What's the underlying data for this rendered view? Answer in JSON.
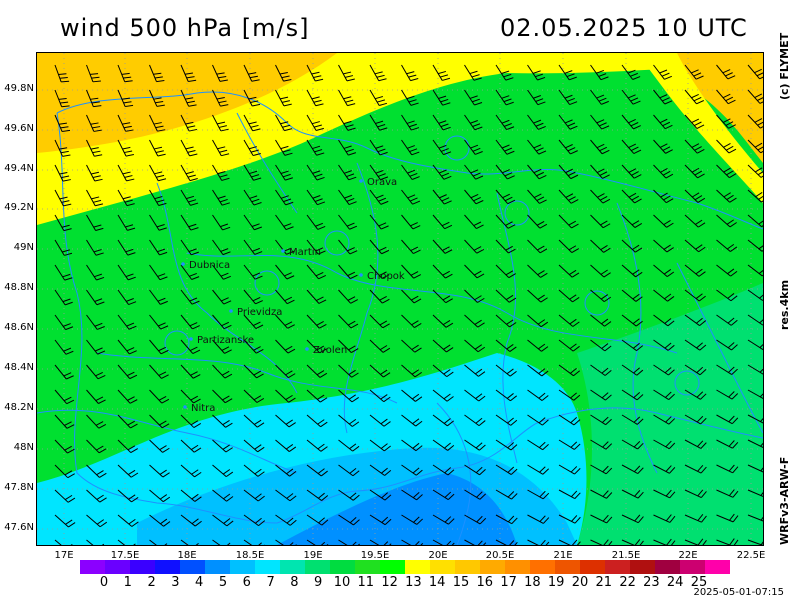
{
  "header": {
    "title": "wind 500 hPa [m/s]",
    "datetime": "02.05.2025   10 UTC"
  },
  "side_labels": {
    "credit": "(c) FLYMET",
    "resolution": "res.4km",
    "model": "WRFv3-ARW-F"
  },
  "axes": {
    "lat_labels": [
      "49.8N",
      "49.6N",
      "49.4N",
      "49.2N",
      "49N",
      "48.8N",
      "48.6N",
      "48.4N",
      "48.2N",
      "48N",
      "47.8N",
      "47.6N"
    ],
    "lon_labels": [
      "17E",
      "17.5E",
      "18E",
      "18.5E",
      "19E",
      "19.5E",
      "20E",
      "20.5E",
      "21E",
      "21.5E",
      "22E",
      "22.5E"
    ]
  },
  "cities": [
    {
      "name": "Orava"
    },
    {
      "name": "Dubnica"
    },
    {
      "name": "Martin"
    },
    {
      "name": "Chopok"
    },
    {
      "name": "Prievidza"
    },
    {
      "name": "Partizanske"
    },
    {
      "name": "Zvolen"
    },
    {
      "name": "Nitra"
    }
  ],
  "legend": {
    "labels": [
      "0",
      "1",
      "2",
      "3",
      "4",
      "5",
      "6",
      "7",
      "8",
      "9",
      "10",
      "11",
      "12",
      "13",
      "14",
      "15",
      "16",
      "17",
      "18",
      "19",
      "20",
      "21",
      "22",
      "23",
      "24",
      "25"
    ],
    "colors": [
      "#8b00ff",
      "#6a00ff",
      "#3a00ff",
      "#1010ff",
      "#0050ff",
      "#0090ff",
      "#00c0ff",
      "#00e5ff",
      "#00e5b0",
      "#00e070",
      "#00dc40",
      "#20e020",
      "#00ff00",
      "#ffff00",
      "#ffe000",
      "#ffc800",
      "#ffaa00",
      "#ff9000",
      "#ff7000",
      "#ee5500",
      "#dd3000",
      "#cc2020",
      "#b01010",
      "#a00040",
      "#cc0070",
      "#ff00aa"
    ]
  },
  "footer": {
    "timestamp": "2025-05-01-07:15"
  },
  "fields": {
    "regions": [
      "yellow",
      "orange",
      "green",
      "cyan",
      "blue"
    ],
    "border_color": "#1e90ff"
  }
}
